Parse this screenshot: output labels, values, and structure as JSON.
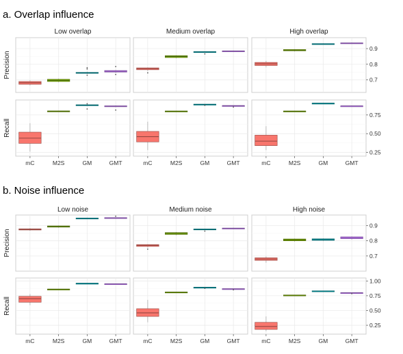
{
  "chart_data": [
    {
      "type": "boxplot",
      "title": "a. Overlap influence",
      "facets": [
        "Low overlap",
        "Medium overlap",
        "High overlap"
      ],
      "categories": [
        "mC",
        "M2S",
        "GM",
        "GMT"
      ],
      "colors": [
        "#F8766D",
        "#7CAE00",
        "#00A9B4",
        "#C77CFF"
      ],
      "rows": [
        {
          "ylabel": "Precision",
          "ylim": [
            0.62,
            0.97
          ],
          "yticks": [
            0.7,
            0.8,
            0.9
          ],
          "ytick_labels": [
            "0.7",
            "0.8",
            "0.9"
          ],
          "panels": [
            [
              {
                "q1": 0.672,
                "median": 0.682,
                "q3": 0.69,
                "wlo": 0.665,
                "whi": 0.697,
                "outliers": []
              },
              {
                "q1": 0.69,
                "median": 0.697,
                "q3": 0.704,
                "wlo": 0.685,
                "whi": 0.708,
                "outliers": []
              },
              {
                "q1": 0.742,
                "median": 0.745,
                "q3": 0.748,
                "wlo": 0.738,
                "whi": 0.752,
                "outliers": [
                  0.73,
                  0.77,
                  0.778
                ]
              },
              {
                "q1": 0.75,
                "median": 0.755,
                "q3": 0.76,
                "wlo": 0.745,
                "whi": 0.763,
                "outliers": [
                  0.735,
                  0.785
                ]
              }
            ],
            [
              {
                "q1": 0.765,
                "median": 0.772,
                "q3": 0.777,
                "wlo": 0.757,
                "whi": 0.78,
                "outliers": [
                  0.745
                ]
              },
              {
                "q1": 0.843,
                "median": 0.85,
                "q3": 0.855,
                "wlo": 0.838,
                "whi": 0.858,
                "outliers": []
              },
              {
                "q1": 0.877,
                "median": 0.879,
                "q3": 0.881,
                "wlo": 0.875,
                "whi": 0.883,
                "outliers": [
                  0.866
                ]
              },
              {
                "q1": 0.882,
                "median": 0.884,
                "q3": 0.886,
                "wlo": 0.879,
                "whi": 0.888,
                "outliers": []
              }
            ],
            [
              {
                "q1": 0.792,
                "median": 0.803,
                "q3": 0.812,
                "wlo": 0.78,
                "whi": 0.822,
                "outliers": []
              },
              {
                "q1": 0.886,
                "median": 0.89,
                "q3": 0.894,
                "wlo": 0.882,
                "whi": 0.897,
                "outliers": []
              },
              {
                "q1": 0.928,
                "median": 0.93,
                "q3": 0.932,
                "wlo": 0.926,
                "whi": 0.934,
                "outliers": []
              },
              {
                "q1": 0.933,
                "median": 0.935,
                "q3": 0.937,
                "wlo": 0.931,
                "whi": 0.939,
                "outliers": []
              }
            ]
          ]
        },
        {
          "ylabel": "Recall",
          "ylim": [
            0.2,
            0.95
          ],
          "yticks": [
            0.25,
            0.5,
            0.75
          ],
          "ytick_labels": [
            "0.25",
            "0.50",
            "0.75"
          ],
          "panels": [
            [
              {
                "q1": 0.37,
                "median": 0.44,
                "q3": 0.52,
                "wlo": 0.26,
                "whi": 0.64,
                "outliers": []
              },
              {
                "q1": 0.796,
                "median": 0.8,
                "q3": 0.804,
                "wlo": 0.792,
                "whi": 0.808,
                "outliers": []
              },
              {
                "q1": 0.878,
                "median": 0.882,
                "q3": 0.886,
                "wlo": 0.872,
                "whi": 0.89,
                "outliers": [
                  0.9,
                  0.83
                ]
              },
              {
                "q1": 0.862,
                "median": 0.867,
                "q3": 0.872,
                "wlo": 0.856,
                "whi": 0.876,
                "outliers": [
                  0.815
                ]
              }
            ],
            [
              {
                "q1": 0.39,
                "median": 0.46,
                "q3": 0.53,
                "wlo": 0.28,
                "whi": 0.66,
                "outliers": []
              },
              {
                "q1": 0.797,
                "median": 0.8,
                "q3": 0.803,
                "wlo": 0.794,
                "whi": 0.806,
                "outliers": []
              },
              {
                "q1": 0.888,
                "median": 0.891,
                "q3": 0.894,
                "wlo": 0.884,
                "whi": 0.897,
                "outliers": [
                  0.878
                ]
              },
              {
                "q1": 0.87,
                "median": 0.873,
                "q3": 0.876,
                "wlo": 0.866,
                "whi": 0.879,
                "outliers": [
                  0.855
                ]
              }
            ],
            [
              {
                "q1": 0.34,
                "median": 0.4,
                "q3": 0.48,
                "wlo": 0.28,
                "whi": 0.6,
                "outliers": []
              },
              {
                "q1": 0.797,
                "median": 0.8,
                "q3": 0.803,
                "wlo": 0.794,
                "whi": 0.806,
                "outliers": []
              },
              {
                "q1": 0.904,
                "median": 0.906,
                "q3": 0.908,
                "wlo": 0.902,
                "whi": 0.91,
                "outliers": []
              },
              {
                "q1": 0.868,
                "median": 0.87,
                "q3": 0.872,
                "wlo": 0.866,
                "whi": 0.874,
                "outliers": []
              }
            ]
          ]
        }
      ]
    },
    {
      "type": "boxplot",
      "title": "b. Noise influence",
      "facets": [
        "Low noise",
        "Medium noise",
        "High noise"
      ],
      "categories": [
        "mC",
        "M2S",
        "GM",
        "GMT"
      ],
      "colors": [
        "#F8766D",
        "#7CAE00",
        "#00A9B4",
        "#C77CFF"
      ],
      "rows": [
        {
          "ylabel": "Precision",
          "ylim": [
            0.6,
            0.97
          ],
          "yticks": [
            0.7,
            0.8,
            0.9
          ],
          "ytick_labels": [
            "0.7",
            "0.8",
            "0.9"
          ],
          "panels": [
            [
              {
                "q1": 0.871,
                "median": 0.875,
                "q3": 0.879,
                "wlo": 0.866,
                "whi": 0.883,
                "outliers": []
              },
              {
                "q1": 0.89,
                "median": 0.894,
                "q3": 0.898,
                "wlo": 0.886,
                "whi": 0.901,
                "outliers": []
              },
              {
                "q1": 0.946,
                "median": 0.948,
                "q3": 0.95,
                "wlo": 0.944,
                "whi": 0.952,
                "outliers": []
              },
              {
                "q1": 0.948,
                "median": 0.951,
                "q3": 0.953,
                "wlo": 0.945,
                "whi": 0.955,
                "outliers": [
                  0.962
                ]
              }
            ],
            [
              {
                "q1": 0.763,
                "median": 0.77,
                "q3": 0.775,
                "wlo": 0.755,
                "whi": 0.778,
                "outliers": [
                  0.745
                ]
              },
              {
                "q1": 0.842,
                "median": 0.849,
                "q3": 0.854,
                "wlo": 0.836,
                "whi": 0.858,
                "outliers": []
              },
              {
                "q1": 0.874,
                "median": 0.876,
                "q3": 0.878,
                "wlo": 0.871,
                "whi": 0.88,
                "outliers": [
                  0.864
                ]
              },
              {
                "q1": 0.88,
                "median": 0.882,
                "q3": 0.884,
                "wlo": 0.877,
                "whi": 0.886,
                "outliers": []
              }
            ],
            [
              {
                "q1": 0.671,
                "median": 0.68,
                "q3": 0.688,
                "wlo": 0.655,
                "whi": 0.697,
                "outliers": []
              },
              {
                "q1": 0.8,
                "median": 0.806,
                "q3": 0.812,
                "wlo": 0.794,
                "whi": 0.815,
                "outliers": []
              },
              {
                "q1": 0.803,
                "median": 0.808,
                "q3": 0.813,
                "wlo": 0.798,
                "whi": 0.816,
                "outliers": []
              },
              {
                "q1": 0.814,
                "median": 0.82,
                "q3": 0.826,
                "wlo": 0.808,
                "whi": 0.829,
                "outliers": []
              }
            ]
          ]
        },
        {
          "ylabel": "Recall",
          "ylim": [
            0.1,
            1.05
          ],
          "yticks": [
            0.25,
            0.5,
            0.75,
            1.0
          ],
          "ytick_labels": [
            "0.25",
            "0.50",
            "0.75",
            "1.00"
          ],
          "panels": [
            [
              {
                "q1": 0.64,
                "median": 0.7,
                "q3": 0.74,
                "wlo": 0.59,
                "whi": 0.78,
                "outliers": []
              },
              {
                "q1": 0.857,
                "median": 0.86,
                "q3": 0.863,
                "wlo": 0.854,
                "whi": 0.866,
                "outliers": []
              },
              {
                "q1": 0.958,
                "median": 0.96,
                "q3": 0.962,
                "wlo": 0.956,
                "whi": 0.964,
                "outliers": []
              },
              {
                "q1": 0.948,
                "median": 0.951,
                "q3": 0.954,
                "wlo": 0.945,
                "whi": 0.957,
                "outliers": []
              }
            ],
            [
              {
                "q1": 0.4,
                "median": 0.46,
                "q3": 0.53,
                "wlo": 0.3,
                "whi": 0.68,
                "outliers": []
              },
              {
                "q1": 0.807,
                "median": 0.81,
                "q3": 0.813,
                "wlo": 0.804,
                "whi": 0.816,
                "outliers": []
              },
              {
                "q1": 0.888,
                "median": 0.891,
                "q3": 0.894,
                "wlo": 0.884,
                "whi": 0.898,
                "outliers": [
                  0.875
                ]
              },
              {
                "q1": 0.862,
                "median": 0.866,
                "q3": 0.87,
                "wlo": 0.857,
                "whi": 0.874,
                "outliers": [
                  0.85
                ]
              }
            ],
            [
              {
                "q1": 0.18,
                "median": 0.23,
                "q3": 0.3,
                "wlo": 0.15,
                "whi": 0.4,
                "outliers": []
              },
              {
                "q1": 0.757,
                "median": 0.76,
                "q3": 0.763,
                "wlo": 0.754,
                "whi": 0.766,
                "outliers": []
              },
              {
                "q1": 0.827,
                "median": 0.83,
                "q3": 0.833,
                "wlo": 0.824,
                "whi": 0.836,
                "outliers": []
              },
              {
                "q1": 0.797,
                "median": 0.8,
                "q3": 0.803,
                "wlo": 0.793,
                "whi": 0.806,
                "outliers": [
                  0.785
                ]
              }
            ]
          ]
        }
      ]
    }
  ]
}
